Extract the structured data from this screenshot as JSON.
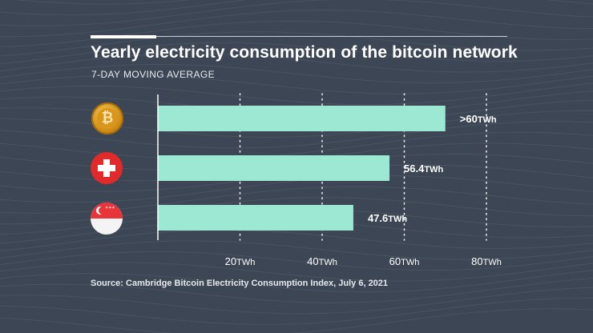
{
  "header": {
    "title": "Yearly electricity consumption of the bitcoin network",
    "subtitle": "7-DAY MOVING AVERAGE"
  },
  "footer": {
    "source": "Source: Cambridge Bitcoin Electricity Consumption Index, July 6, 2021"
  },
  "icons": {
    "bitcoin": "bitcoin-logo-icon",
    "switzerland": "swiss-flag-icon",
    "singapore": "singapore-flag-icon",
    "bitcoin_symbol": "₿",
    "singapore_stars": "✶✶✶"
  },
  "colors": {
    "background": "#3d4654",
    "bar": "#9de8d3",
    "gridline": "#e6e9ee"
  },
  "chart_data": {
    "type": "bar",
    "orientation": "horizontal",
    "title": "Yearly electricity consumption of the bitcoin network",
    "subtitle": "7-DAY MOVING AVERAGE",
    "categories": [
      "",
      "",
      ""
    ],
    "values": [
      70,
      56.4,
      47.6
    ],
    "value_labels": [
      {
        "number": ">60",
        "unit": "TWh"
      },
      {
        "number": "56.4",
        "unit": "TWh"
      },
      {
        "number": "47.6",
        "unit": "TWh"
      }
    ],
    "xticks": [
      {
        "value": 20,
        "number": "20",
        "unit": "TWh"
      },
      {
        "value": 40,
        "number": "40",
        "unit": "TWh"
      },
      {
        "value": 60,
        "number": "60",
        "unit": "TWh"
      },
      {
        "value": 80,
        "number": "80",
        "unit": "TWh"
      }
    ],
    "xlim": [
      0,
      80
    ],
    "grid": "dotted vertical",
    "legend": "none"
  }
}
